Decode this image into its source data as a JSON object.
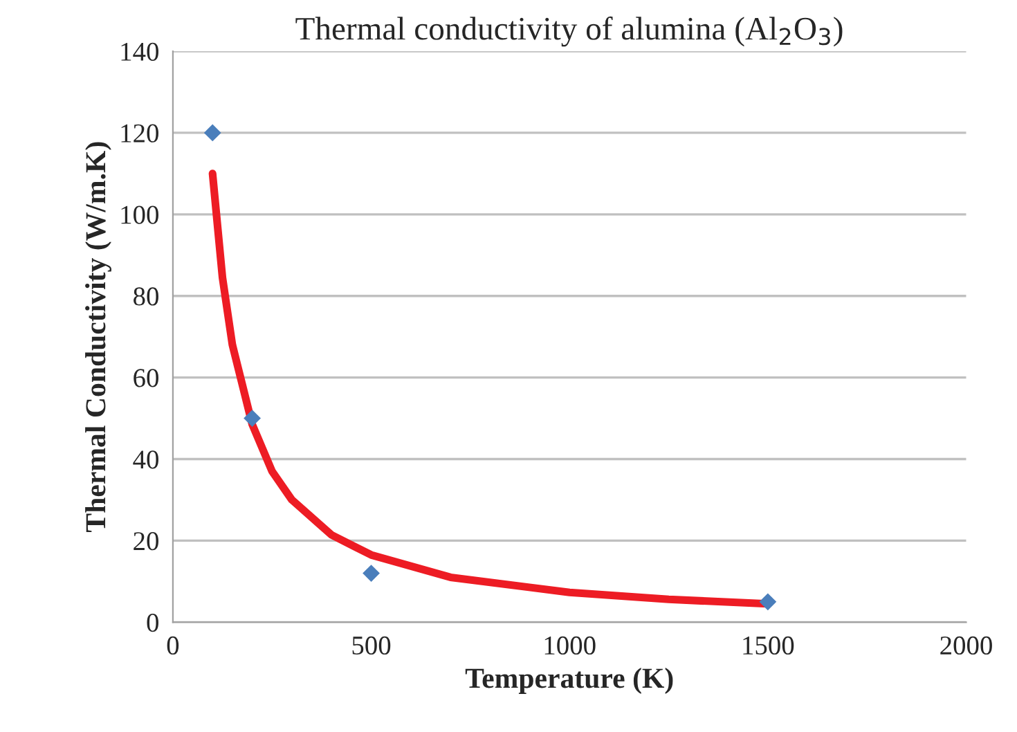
{
  "chart_data": {
    "type": "scatter",
    "title": "Thermal conductivity of alumina (Al$_{2}$O$_{3}$)",
    "xlabel": "Temperature (K)",
    "ylabel": "Thermal Conductivity (W/m.K)",
    "xlim": [
      0,
      2000
    ],
    "xticks": [
      0,
      500,
      1000,
      1500,
      2000
    ],
    "ylim": [
      0,
      140
    ],
    "yticks": [
      0,
      20,
      40,
      60,
      80,
      100,
      120,
      140
    ],
    "grid": "y",
    "legend": false,
    "series": [
      {
        "color": "#4a7ebb",
        "marker": "diamond",
        "x": [
          100,
          200,
          500,
          1500
        ],
        "values": [
          120,
          50,
          12,
          5
        ]
      },
      {
        "type": "line",
        "color": "#ed1c24",
        "marker": "none",
        "line_style": "solid",
        "x": [
          100,
          125,
          150,
          200,
          250,
          300,
          400,
          500,
          700,
          1000,
          1250,
          1500
        ],
        "values": [
          110,
          84.5,
          68,
          48.5,
          37,
          30,
          21.4,
          16.5,
          11,
          7.3,
          5.6,
          4.5
        ]
      }
    ]
  }
}
